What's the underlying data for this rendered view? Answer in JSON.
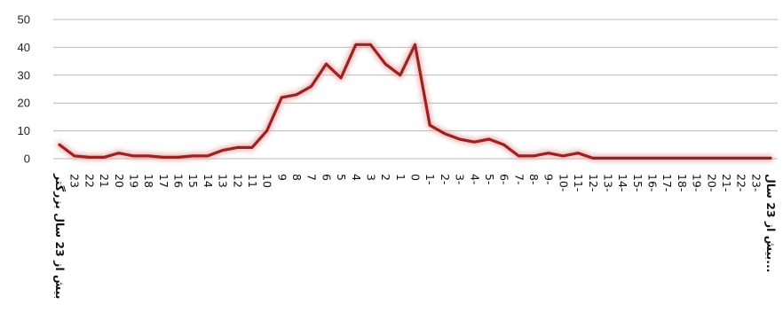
{
  "chart_data": {
    "type": "line",
    "title": "",
    "xlabel": "",
    "ylabel": "",
    "ylim": [
      0,
      50
    ],
    "yticks": [
      0,
      10,
      20,
      30,
      40,
      50
    ],
    "grid": true,
    "legend": "none",
    "line_color": "#9b2222",
    "categories": [
      "بیش از 23 سال بزرگتر",
      "23",
      "22",
      "21",
      "20",
      "19",
      "18",
      "17",
      "16",
      "15",
      "14",
      "13",
      "12",
      "11",
      "10",
      "9",
      "8",
      "7",
      "6",
      "5",
      "4",
      "3",
      "2",
      "1",
      "0",
      "1-",
      "2-",
      "3-",
      "4-",
      "5-",
      "6-",
      "7-",
      "8-",
      "9-",
      "10-",
      "11-",
      "12-",
      "13-",
      "14-",
      "15-",
      "16-",
      "17-",
      "18-",
      "19-",
      "20-",
      "21-",
      "22-",
      "23-",
      "بیش از 23 سال..."
    ],
    "series": [
      {
        "values": [
          5,
          1,
          0.5,
          0.5,
          2,
          1,
          1,
          0.5,
          0.5,
          1,
          1,
          3,
          4,
          4,
          10,
          22,
          23,
          26,
          34,
          29,
          41,
          41,
          34,
          30,
          41,
          12,
          9,
          7,
          6,
          7,
          5,
          1,
          1,
          2,
          1,
          2,
          0.2,
          0.2,
          0.2,
          0.2,
          0.2,
          0.2,
          0.2,
          0.2,
          0.2,
          0.2,
          0.2,
          0.2,
          0.2
        ]
      }
    ]
  }
}
